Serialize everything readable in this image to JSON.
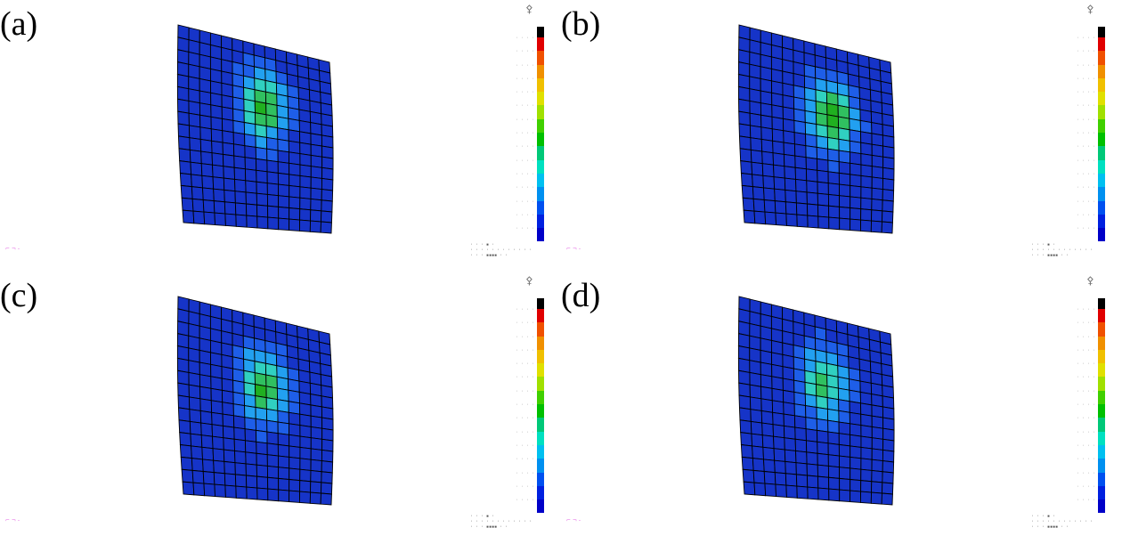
{
  "panels": [
    {
      "label": "(a)"
    },
    {
      "label": "(b)"
    },
    {
      "label": "(c)"
    },
    {
      "label": "(d)"
    }
  ],
  "colors": {
    "mesh_base": "#1634c8",
    "mesh_line": "#000000",
    "scale": [
      "#0000c8",
      "#0020e0",
      "#0050f0",
      "#0090f0",
      "#00c0f0",
      "#00e0c0",
      "#00c878",
      "#00c000",
      "#40d000",
      "#a0e000",
      "#e0e000",
      "#f0c000",
      "#f09000",
      "#f05000",
      "#e00000",
      "#000000"
    ]
  }
}
